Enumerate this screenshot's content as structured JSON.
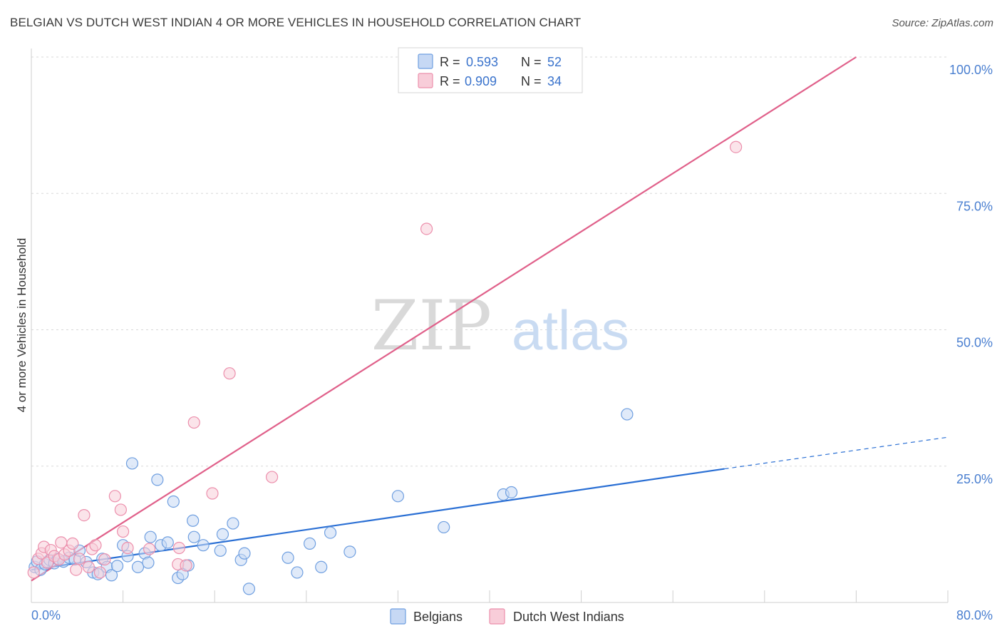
{
  "title": "BELGIAN VS DUTCH WEST INDIAN 4 OR MORE VEHICLES IN HOUSEHOLD CORRELATION CHART",
  "source": "Source: ZipAtlas.com",
  "watermark": {
    "part1": "ZIP",
    "part2": "atlas"
  },
  "colors": {
    "blue": "#6f9fe0",
    "blue_fill": "#c6d8f4",
    "blue_line": "#2a6fd4",
    "pink": "#ec8fac",
    "pink_fill": "#f8cdd9",
    "pink_line": "#e0608a",
    "tick_text": "#4a7fd0",
    "grid": "#d8d8d8"
  },
  "legend": {
    "rows": [
      {
        "r_label": "R =",
        "r_value": "0.593",
        "n_label": "N =",
        "n_value": "52"
      },
      {
        "r_label": "R =",
        "r_value": "0.909",
        "n_label": "N =",
        "n_value": "34"
      }
    ]
  },
  "bottom_legend": [
    "Belgians",
    "Dutch West Indians"
  ],
  "chart_data": {
    "type": "scatter",
    "title": "BELGIAN VS DUTCH WEST INDIAN 4 OR MORE VEHICLES IN HOUSEHOLD CORRELATION CHART",
    "xlabel": "",
    "ylabel": "4 or more Vehicles in Household",
    "xlim": [
      0,
      80
    ],
    "ylim": [
      0,
      100
    ],
    "x_tick_labels": [
      "0.0%",
      "80.0%"
    ],
    "y_tick_labels": [
      "100.0%",
      "75.0%",
      "50.0%",
      "25.0%"
    ],
    "y_ticks": [
      100,
      75,
      50,
      25
    ],
    "grid": true,
    "legend_position": "top-center",
    "series": [
      {
        "name": "Belgians",
        "color": "#6f9fe0",
        "R": 0.593,
        "N": 52,
        "trend": {
          "x0": 0,
          "y0": 6.0,
          "x1": 60.5,
          "y1": 24.5,
          "dash_to_x": 80,
          "dash_to_y": 30.3
        },
        "points": [
          [
            0.3,
            6.5
          ],
          [
            0.5,
            7.5
          ],
          [
            0.8,
            6.0
          ],
          [
            1.2,
            7.0
          ],
          [
            1.6,
            7.8
          ],
          [
            2.0,
            7.2
          ],
          [
            2.3,
            8.0
          ],
          [
            2.8,
            7.5
          ],
          [
            3.3,
            8.2
          ],
          [
            3.8,
            7.9
          ],
          [
            4.2,
            9.5
          ],
          [
            4.8,
            7.4
          ],
          [
            5.4,
            5.5
          ],
          [
            5.8,
            5.2
          ],
          [
            6.2,
            8.0
          ],
          [
            6.6,
            6.5
          ],
          [
            7.0,
            5.0
          ],
          [
            7.5,
            6.7
          ],
          [
            8.0,
            10.5
          ],
          [
            8.4,
            8.5
          ],
          [
            8.8,
            25.5
          ],
          [
            9.3,
            6.5
          ],
          [
            9.9,
            9.0
          ],
          [
            10.2,
            7.3
          ],
          [
            10.4,
            12.0
          ],
          [
            11.0,
            22.5
          ],
          [
            11.3,
            10.5
          ],
          [
            11.9,
            11.0
          ],
          [
            12.4,
            18.5
          ],
          [
            12.8,
            4.5
          ],
          [
            13.2,
            5.2
          ],
          [
            13.7,
            6.8
          ],
          [
            14.1,
            15.0
          ],
          [
            14.2,
            12.0
          ],
          [
            15.0,
            10.5
          ],
          [
            16.5,
            9.5
          ],
          [
            16.7,
            12.5
          ],
          [
            17.6,
            14.5
          ],
          [
            18.3,
            7.8
          ],
          [
            18.6,
            9.0
          ],
          [
            19.0,
            2.5
          ],
          [
            22.4,
            8.2
          ],
          [
            23.2,
            5.5
          ],
          [
            24.3,
            10.8
          ],
          [
            25.3,
            6.5
          ],
          [
            26.1,
            12.8
          ],
          [
            27.8,
            9.3
          ],
          [
            32.0,
            19.5
          ],
          [
            36.0,
            13.8
          ],
          [
            41.2,
            19.8
          ],
          [
            41.9,
            20.2
          ],
          [
            52.0,
            34.5
          ]
        ]
      },
      {
        "name": "Dutch West Indians",
        "color": "#ec8fac",
        "R": 0.909,
        "N": 34,
        "trend": {
          "x0": 0,
          "y0": 4.0,
          "x1": 72,
          "y1": 100
        },
        "points": [
          [
            0.2,
            5.5
          ],
          [
            0.6,
            8.0
          ],
          [
            0.9,
            9.0
          ],
          [
            1.1,
            10.2
          ],
          [
            1.4,
            7.3
          ],
          [
            1.7,
            9.6
          ],
          [
            2.0,
            8.5
          ],
          [
            2.4,
            7.9
          ],
          [
            2.6,
            11.0
          ],
          [
            2.9,
            8.8
          ],
          [
            3.3,
            9.5
          ],
          [
            3.6,
            10.8
          ],
          [
            3.9,
            6.0
          ],
          [
            4.2,
            8.0
          ],
          [
            4.6,
            16.0
          ],
          [
            5.0,
            6.5
          ],
          [
            5.3,
            9.8
          ],
          [
            5.6,
            10.5
          ],
          [
            6.0,
            5.5
          ],
          [
            6.4,
            7.9
          ],
          [
            7.3,
            19.5
          ],
          [
            7.8,
            17.0
          ],
          [
            8.0,
            13.0
          ],
          [
            8.4,
            10.0
          ],
          [
            10.3,
            9.8
          ],
          [
            12.8,
            7.0
          ],
          [
            12.9,
            10.0
          ],
          [
            13.5,
            6.8
          ],
          [
            14.2,
            33.0
          ],
          [
            15.8,
            20.0
          ],
          [
            17.3,
            42.0
          ],
          [
            21.0,
            23.0
          ],
          [
            34.5,
            68.5
          ],
          [
            61.5,
            83.5
          ]
        ]
      }
    ]
  }
}
